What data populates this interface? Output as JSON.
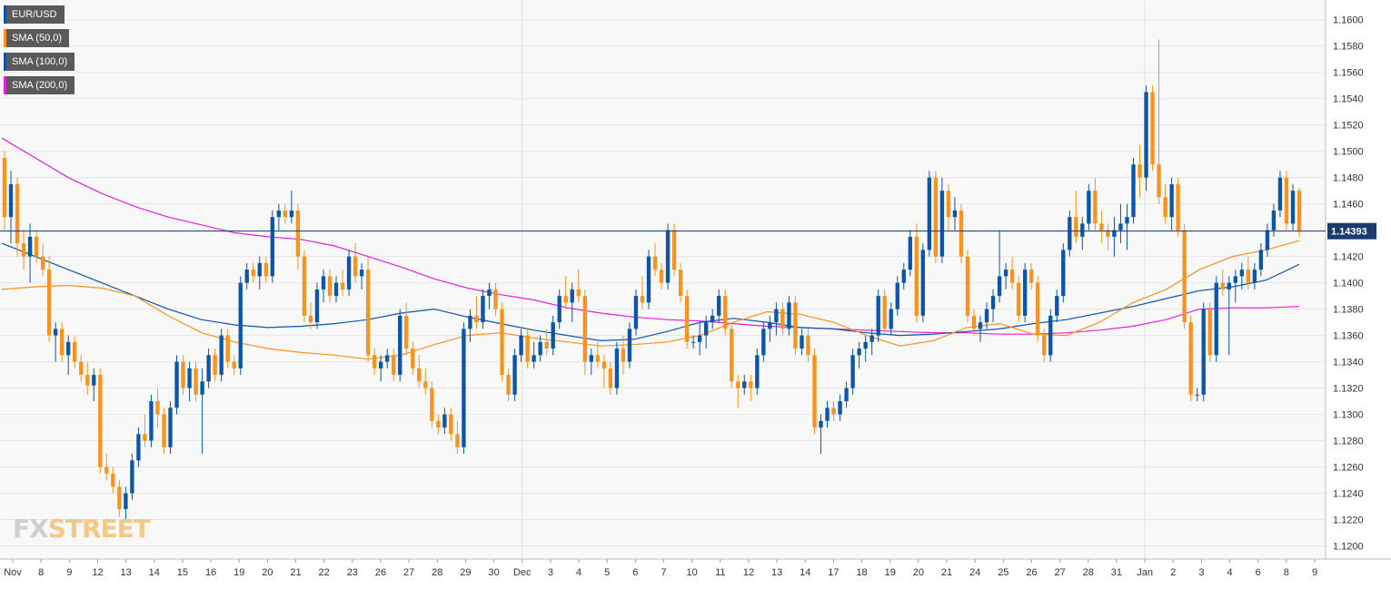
{
  "chart_data": {
    "type": "candlestick",
    "instrument": "EUR/USD",
    "legend": [
      {
        "label": "EUR/USD",
        "color": "#0d55a8"
      },
      {
        "label": "SMA (50,0)",
        "color": "#f7931e"
      },
      {
        "label": "SMA (100,0)",
        "color": "#0d55a8"
      },
      {
        "label": "SMA (200,0)",
        "color": "#e020d8"
      }
    ],
    "colors": {
      "up": "#0d55a8",
      "down": "#f7931e",
      "grid": "#e6e6e6",
      "price_line": "#1b3b6f"
    },
    "ylim": [
      1.119,
      1.1615
    ],
    "yticks": [
      "1.1200",
      "1.1220",
      "1.1240",
      "1.1260",
      "1.1280",
      "1.1300",
      "1.1320",
      "1.1340",
      "1.1360",
      "1.1380",
      "1.1400",
      "1.1420",
      "1.1440",
      "1.1460",
      "1.1480",
      "1.1500",
      "1.1520",
      "1.1540",
      "1.1560",
      "1.1580",
      "1.1600"
    ],
    "xticks": [
      "Nov",
      "8",
      "9",
      "12",
      "13",
      "14",
      "15",
      "16",
      "19",
      "20",
      "21",
      "22",
      "23",
      "26",
      "27",
      "28",
      "29",
      "30",
      "Dec",
      "3",
      "4",
      "5",
      "6",
      "7",
      "10",
      "11",
      "12",
      "13",
      "14",
      "17",
      "18",
      "19",
      "20",
      "21",
      "24",
      "25",
      "26",
      "27",
      "28",
      "31",
      "Jan",
      "2",
      "3",
      "4",
      "6",
      "8",
      "9"
    ],
    "current_price": "1.14393",
    "current_price_value": 1.14393,
    "candles": [
      [
        1.1495,
        1.15,
        1.144,
        1.145
      ],
      [
        1.145,
        1.1485,
        1.143,
        1.1475
      ],
      [
        1.1475,
        1.148,
        1.142,
        1.143
      ],
      [
        1.143,
        1.144,
        1.141,
        1.142
      ],
      [
        1.142,
        1.1445,
        1.14,
        1.1435
      ],
      [
        1.1435,
        1.144,
        1.1415,
        1.142
      ],
      [
        1.142,
        1.143,
        1.1405,
        1.141
      ],
      [
        1.141,
        1.142,
        1.1355,
        1.136
      ],
      [
        1.136,
        1.137,
        1.134,
        1.1365
      ],
      [
        1.1365,
        1.137,
        1.134,
        1.1345
      ],
      [
        1.1345,
        1.136,
        1.133,
        1.1355
      ],
      [
        1.1355,
        1.136,
        1.1335,
        1.134
      ],
      [
        1.134,
        1.1345,
        1.1325,
        1.133
      ],
      [
        1.133,
        1.134,
        1.1315,
        1.1322
      ],
      [
        1.1322,
        1.1335,
        1.131,
        1.133
      ],
      [
        1.133,
        1.1335,
        1.1255,
        1.126
      ],
      [
        1.126,
        1.127,
        1.125,
        1.1255
      ],
      [
        1.1255,
        1.126,
        1.124,
        1.1245
      ],
      [
        1.1245,
        1.125,
        1.1222,
        1.1228
      ],
      [
        1.1228,
        1.1245,
        1.122,
        1.124
      ],
      [
        1.124,
        1.127,
        1.1235,
        1.1265
      ],
      [
        1.1265,
        1.129,
        1.126,
        1.1285
      ],
      [
        1.1285,
        1.13,
        1.1275,
        1.128
      ],
      [
        1.128,
        1.1315,
        1.1275,
        1.131
      ],
      [
        1.131,
        1.132,
        1.129,
        1.13
      ],
      [
        1.13,
        1.1305,
        1.127,
        1.1275
      ],
      [
        1.1275,
        1.131,
        1.127,
        1.1305
      ],
      [
        1.1305,
        1.1345,
        1.13,
        1.134
      ],
      [
        1.134,
        1.1345,
        1.1315,
        1.132
      ],
      [
        1.132,
        1.134,
        1.131,
        1.1335
      ],
      [
        1.1335,
        1.134,
        1.131,
        1.1315
      ],
      [
        1.1315,
        1.1335,
        1.127,
        1.1325
      ],
      [
        1.1325,
        1.135,
        1.132,
        1.1345
      ],
      [
        1.1345,
        1.135,
        1.1325,
        1.133
      ],
      [
        1.133,
        1.1365,
        1.1325,
        1.136
      ],
      [
        1.136,
        1.1365,
        1.1335,
        1.134
      ],
      [
        1.134,
        1.1345,
        1.133,
        1.1335
      ],
      [
        1.1335,
        1.1405,
        1.133,
        1.14
      ],
      [
        1.14,
        1.1415,
        1.1395,
        1.141
      ],
      [
        1.141,
        1.1415,
        1.14,
        1.1405
      ],
      [
        1.1405,
        1.142,
        1.1395,
        1.1415
      ],
      [
        1.1415,
        1.142,
        1.14,
        1.1405
      ],
      [
        1.1405,
        1.1455,
        1.14,
        1.145
      ],
      [
        1.145,
        1.146,
        1.144,
        1.1455
      ],
      [
        1.1455,
        1.146,
        1.1445,
        1.145
      ],
      [
        1.145,
        1.147,
        1.1445,
        1.1455
      ],
      [
        1.1455,
        1.146,
        1.141,
        1.142
      ],
      [
        1.142,
        1.1425,
        1.137,
        1.1375
      ],
      [
        1.1375,
        1.1385,
        1.1365,
        1.137
      ],
      [
        1.137,
        1.14,
        1.1365,
        1.1395
      ],
      [
        1.1395,
        1.141,
        1.1385,
        1.1405
      ],
      [
        1.1405,
        1.141,
        1.1385,
        1.139
      ],
      [
        1.139,
        1.1405,
        1.1385,
        1.14
      ],
      [
        1.14,
        1.141,
        1.139,
        1.1395
      ],
      [
        1.1395,
        1.1425,
        1.139,
        1.142
      ],
      [
        1.142,
        1.143,
        1.14,
        1.1405
      ],
      [
        1.1405,
        1.1415,
        1.1395,
        1.141
      ],
      [
        1.141,
        1.142,
        1.134,
        1.1345
      ],
      [
        1.1345,
        1.135,
        1.133,
        1.1335
      ],
      [
        1.1335,
        1.1345,
        1.1325,
        1.134
      ],
      [
        1.134,
        1.135,
        1.1335,
        1.1345
      ],
      [
        1.1345,
        1.135,
        1.1325,
        1.133
      ],
      [
        1.133,
        1.138,
        1.1325,
        1.1375
      ],
      [
        1.1375,
        1.1385,
        1.1345,
        1.135
      ],
      [
        1.135,
        1.1355,
        1.133,
        1.1335
      ],
      [
        1.1335,
        1.1345,
        1.132,
        1.1325
      ],
      [
        1.1325,
        1.1335,
        1.1315,
        1.132
      ],
      [
        1.132,
        1.1325,
        1.129,
        1.1295
      ],
      [
        1.1295,
        1.13,
        1.1285,
        1.129
      ],
      [
        1.129,
        1.1305,
        1.1285,
        1.13
      ],
      [
        1.13,
        1.1305,
        1.128,
        1.1285
      ],
      [
        1.1285,
        1.1295,
        1.127,
        1.1275
      ],
      [
        1.1275,
        1.137,
        1.127,
        1.1365
      ],
      [
        1.1365,
        1.138,
        1.1355,
        1.1375
      ],
      [
        1.1375,
        1.139,
        1.1365,
        1.137
      ],
      [
        1.137,
        1.1395,
        1.1365,
        1.139
      ],
      [
        1.139,
        1.14,
        1.138,
        1.1395
      ],
      [
        1.1395,
        1.14,
        1.1375,
        1.138
      ],
      [
        1.138,
        1.1385,
        1.1325,
        1.133
      ],
      [
        1.133,
        1.1335,
        1.131,
        1.1315
      ],
      [
        1.1315,
        1.135,
        1.131,
        1.1345
      ],
      [
        1.1345,
        1.1365,
        1.134,
        1.136
      ],
      [
        1.136,
        1.1365,
        1.1335,
        1.134
      ],
      [
        1.134,
        1.1355,
        1.1335,
        1.1345
      ],
      [
        1.1345,
        1.136,
        1.134,
        1.1355
      ],
      [
        1.1355,
        1.1365,
        1.1345,
        1.135
      ],
      [
        1.135,
        1.1375,
        1.1345,
        1.137
      ],
      [
        1.137,
        1.1395,
        1.1365,
        1.139
      ],
      [
        1.139,
        1.1405,
        1.138,
        1.1385
      ],
      [
        1.1385,
        1.14,
        1.137,
        1.1395
      ],
      [
        1.1395,
        1.141,
        1.1385,
        1.139
      ],
      [
        1.139,
        1.1395,
        1.133,
        1.134
      ],
      [
        1.134,
        1.135,
        1.133,
        1.1345
      ],
      [
        1.1345,
        1.1355,
        1.1335,
        1.134
      ],
      [
        1.134,
        1.1345,
        1.132,
        1.1335
      ],
      [
        1.1335,
        1.134,
        1.1315,
        1.132
      ],
      [
        1.132,
        1.1355,
        1.1315,
        1.135
      ],
      [
        1.135,
        1.136,
        1.133,
        1.134
      ],
      [
        1.134,
        1.137,
        1.1335,
        1.1365
      ],
      [
        1.1365,
        1.1395,
        1.136,
        1.139
      ],
      [
        1.139,
        1.1405,
        1.138,
        1.1385
      ],
      [
        1.1385,
        1.1425,
        1.138,
        1.142
      ],
      [
        1.142,
        1.143,
        1.1405,
        1.141
      ],
      [
        1.141,
        1.1415,
        1.1395,
        1.14
      ],
      [
        1.14,
        1.1445,
        1.1395,
        1.144
      ],
      [
        1.144,
        1.1445,
        1.1405,
        1.141
      ],
      [
        1.141,
        1.1415,
        1.1385,
        1.139
      ],
      [
        1.139,
        1.1395,
        1.135,
        1.1355
      ],
      [
        1.1355,
        1.136,
        1.135,
        1.1355
      ],
      [
        1.1355,
        1.137,
        1.1345,
        1.136
      ],
      [
        1.136,
        1.1375,
        1.135,
        1.137
      ],
      [
        1.137,
        1.138,
        1.1365,
        1.1375
      ],
      [
        1.1375,
        1.1395,
        1.137,
        1.139
      ],
      [
        1.139,
        1.1395,
        1.136,
        1.1365
      ],
      [
        1.1365,
        1.137,
        1.132,
        1.1325
      ],
      [
        1.1325,
        1.133,
        1.1305,
        1.132
      ],
      [
        1.132,
        1.133,
        1.1315,
        1.1325
      ],
      [
        1.1325,
        1.133,
        1.131,
        1.132
      ],
      [
        1.132,
        1.135,
        1.1315,
        1.1345
      ],
      [
        1.1345,
        1.137,
        1.134,
        1.1365
      ],
      [
        1.1365,
        1.1375,
        1.1355,
        1.137
      ],
      [
        1.137,
        1.1385,
        1.136,
        1.138
      ],
      [
        1.138,
        1.1385,
        1.136,
        1.1365
      ],
      [
        1.1365,
        1.139,
        1.136,
        1.1385
      ],
      [
        1.1385,
        1.139,
        1.1345,
        1.135
      ],
      [
        1.135,
        1.1365,
        1.1345,
        1.136
      ],
      [
        1.136,
        1.1365,
        1.134,
        1.1345
      ],
      [
        1.1345,
        1.135,
        1.1285,
        1.129
      ],
      [
        1.129,
        1.13,
        1.127,
        1.1295
      ],
      [
        1.1295,
        1.131,
        1.129,
        1.1305
      ],
      [
        1.1305,
        1.131,
        1.1295,
        1.13
      ],
      [
        1.13,
        1.1315,
        1.1295,
        1.131
      ],
      [
        1.131,
        1.1325,
        1.1305,
        1.132
      ],
      [
        1.132,
        1.135,
        1.1315,
        1.1345
      ],
      [
        1.1345,
        1.1355,
        1.1335,
        1.135
      ],
      [
        1.135,
        1.136,
        1.134,
        1.1355
      ],
      [
        1.1355,
        1.1365,
        1.1345,
        1.136
      ],
      [
        1.136,
        1.1395,
        1.1355,
        1.139
      ],
      [
        1.139,
        1.1395,
        1.136,
        1.1365
      ],
      [
        1.1365,
        1.1385,
        1.136,
        1.138
      ],
      [
        1.138,
        1.1405,
        1.1375,
        1.14
      ],
      [
        1.14,
        1.1415,
        1.1395,
        1.141
      ],
      [
        1.141,
        1.144,
        1.1405,
        1.1435
      ],
      [
        1.1435,
        1.1445,
        1.137,
        1.1375
      ],
      [
        1.1375,
        1.143,
        1.137,
        1.1425
      ],
      [
        1.1425,
        1.1485,
        1.142,
        1.148
      ],
      [
        1.148,
        1.1485,
        1.1415,
        1.142
      ],
      [
        1.142,
        1.148,
        1.1415,
        1.147
      ],
      [
        1.147,
        1.1475,
        1.144,
        1.145
      ],
      [
        1.145,
        1.1465,
        1.144,
        1.1455
      ],
      [
        1.1455,
        1.146,
        1.1415,
        1.142
      ],
      [
        1.142,
        1.1425,
        1.137,
        1.1375
      ],
      [
        1.1375,
        1.138,
        1.136,
        1.1365
      ],
      [
        1.1365,
        1.1375,
        1.1355,
        1.137
      ],
      [
        1.137,
        1.1385,
        1.1365,
        1.138
      ],
      [
        1.138,
        1.1395,
        1.137,
        1.139
      ],
      [
        1.139,
        1.144,
        1.1385,
        1.1405
      ],
      [
        1.1405,
        1.1415,
        1.1395,
        1.141
      ],
      [
        1.141,
        1.142,
        1.1395,
        1.14
      ],
      [
        1.14,
        1.1405,
        1.137,
        1.1375
      ],
      [
        1.1375,
        1.1415,
        1.137,
        1.141
      ],
      [
        1.141,
        1.1415,
        1.1395,
        1.14
      ],
      [
        1.14,
        1.1405,
        1.1355,
        1.136
      ],
      [
        1.136,
        1.1365,
        1.134,
        1.1345
      ],
      [
        1.1345,
        1.138,
        1.134,
        1.1375
      ],
      [
        1.1375,
        1.1395,
        1.137,
        1.139
      ],
      [
        1.139,
        1.143,
        1.1385,
        1.1425
      ],
      [
        1.1425,
        1.1455,
        1.142,
        1.145
      ],
      [
        1.145,
        1.147,
        1.143,
        1.1435
      ],
      [
        1.1435,
        1.145,
        1.1425,
        1.1445
      ],
      [
        1.1445,
        1.1475,
        1.144,
        1.147
      ],
      [
        1.147,
        1.148,
        1.144,
        1.1445
      ],
      [
        1.1445,
        1.1455,
        1.143,
        1.144
      ],
      [
        1.144,
        1.1445,
        1.1425,
        1.1435
      ],
      [
        1.1435,
        1.145,
        1.142,
        1.144
      ],
      [
        1.144,
        1.146,
        1.143,
        1.1445
      ],
      [
        1.1445,
        1.146,
        1.1425,
        1.145
      ],
      [
        1.145,
        1.1495,
        1.1445,
        1.149
      ],
      [
        1.149,
        1.1505,
        1.1465,
        1.148
      ],
      [
        1.148,
        1.155,
        1.147,
        1.1545
      ],
      [
        1.1545,
        1.155,
        1.1485,
        1.149
      ],
      [
        1.149,
        1.1585,
        1.146,
        1.1465
      ],
      [
        1.1465,
        1.1475,
        1.1445,
        1.145
      ],
      [
        1.145,
        1.148,
        1.144,
        1.1475
      ],
      [
        1.1475,
        1.148,
        1.1435,
        1.144
      ],
      [
        1.144,
        1.1445,
        1.1365,
        1.137
      ],
      [
        1.137,
        1.1375,
        1.131,
        1.1315
      ],
      [
        1.1315,
        1.132,
        1.131,
        1.1315
      ],
      [
        1.1315,
        1.1385,
        1.131,
        1.138
      ],
      [
        1.138,
        1.1385,
        1.134,
        1.1345
      ],
      [
        1.1345,
        1.1405,
        1.134,
        1.14
      ],
      [
        1.14,
        1.141,
        1.139,
        1.1395
      ],
      [
        1.1395,
        1.1405,
        1.1345,
        1.14
      ],
      [
        1.14,
        1.141,
        1.1385,
        1.1405
      ],
      [
        1.1405,
        1.1415,
        1.1395,
        1.141
      ],
      [
        1.141,
        1.142,
        1.1395,
        1.14
      ],
      [
        1.14,
        1.1415,
        1.1395,
        1.141
      ],
      [
        1.141,
        1.143,
        1.1405,
        1.1425
      ],
      [
        1.1425,
        1.1445,
        1.142,
        1.144
      ],
      [
        1.144,
        1.146,
        1.1435,
        1.1455
      ],
      [
        1.1455,
        1.1485,
        1.145,
        1.148
      ],
      [
        1.148,
        1.1485,
        1.144,
        1.1445
      ],
      [
        1.1445,
        1.1475,
        1.144,
        1.147
      ],
      [
        1.147,
        1.1472,
        1.1435,
        1.1439
      ]
    ],
    "sma50": [
      1.1395,
      1.1397,
      1.1398,
      1.1396,
      1.139,
      1.1375,
      1.1362,
      1.1355,
      1.135,
      1.1347,
      1.1345,
      1.1342,
      1.1345,
      1.1353,
      1.136,
      1.1362,
      1.1358,
      1.1355,
      1.1352,
      1.1353,
      1.1355,
      1.136,
      1.137,
      1.1378,
      1.1376,
      1.137,
      1.136,
      1.1352,
      1.1356,
      1.1366,
      1.1369,
      1.1361,
      1.136,
      1.137,
      1.1385,
      1.1395,
      1.141,
      1.142,
      1.1425,
      1.1432
    ],
    "sma100": [
      1.143,
      1.142,
      1.141,
      1.14,
      1.139,
      1.138,
      1.1372,
      1.1368,
      1.1366,
      1.1367,
      1.1369,
      1.1372,
      1.1377,
      1.138,
      1.1374,
      1.1369,
      1.1364,
      1.136,
      1.1356,
      1.1357,
      1.1363,
      1.137,
      1.1373,
      1.137,
      1.1366,
      1.1365,
      1.1362,
      1.136,
      1.1361,
      1.1363,
      1.1365,
      1.1369,
      1.1372,
      1.1377,
      1.1382,
      1.1388,
      1.1394,
      1.1397,
      1.1402,
      1.1414
    ],
    "sma200": [
      1.151,
      1.1495,
      1.148,
      1.1468,
      1.1458,
      1.145,
      1.1444,
      1.1438,
      1.1435,
      1.1433,
      1.1428,
      1.142,
      1.1412,
      1.1403,
      1.1396,
      1.1391,
      1.1387,
      1.1381,
      1.1377,
      1.1374,
      1.1372,
      1.1371,
      1.1369,
      1.1367,
      1.1366,
      1.1365,
      1.1364,
      1.1363,
      1.1362,
      1.1362,
      1.1361,
      1.1361,
      1.1362,
      1.1364,
      1.1367,
      1.1372,
      1.138,
      1.1381,
      1.1381,
      1.1382
    ]
  },
  "watermark": {
    "left": "FX",
    "right": "STREET"
  }
}
